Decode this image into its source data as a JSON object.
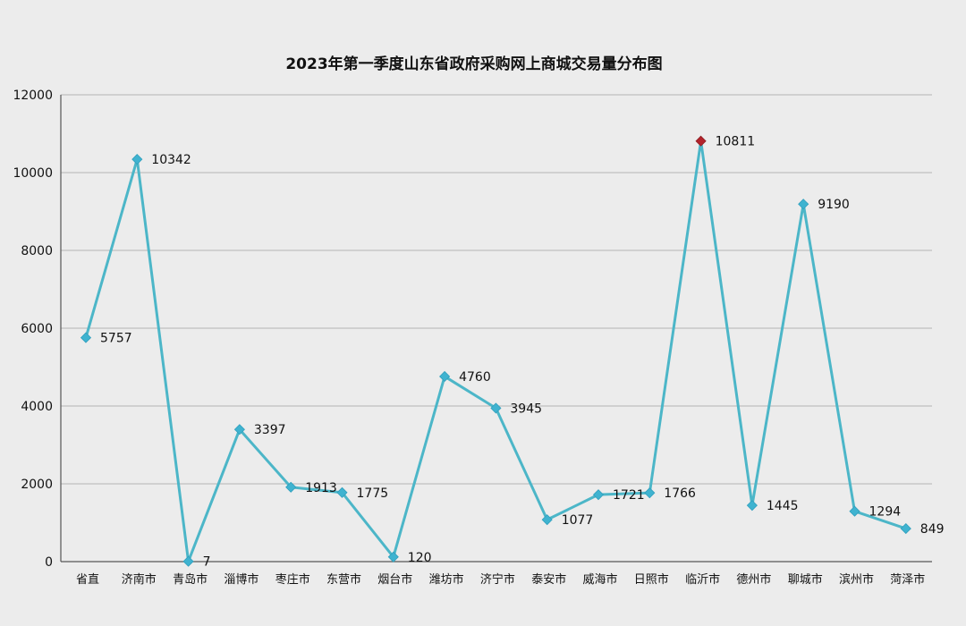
{
  "chart_data": {
    "type": "line",
    "title": "2023年第一季度山东省政府采购网上商城交易量分布图",
    "categories": [
      "省直",
      "济南市",
      "青岛市",
      "淄博市",
      "枣庄市",
      "东营市",
      "烟台市",
      "潍坊市",
      "济宁市",
      "泰安市",
      "威海市",
      "日照市",
      "临沂市",
      "德州市",
      "聊城市",
      "滨州市",
      "菏泽市"
    ],
    "series": [
      {
        "values": [
          5757,
          10342,
          7,
          3397,
          1913,
          1775,
          120,
          4760,
          3945,
          1077,
          1721,
          1766,
          10811,
          1445,
          9190,
          1294,
          849
        ]
      }
    ],
    "ylim": [
      0,
      12000
    ],
    "yticks": [
      0,
      2000,
      4000,
      6000,
      8000,
      10000,
      12000
    ],
    "grid": true,
    "xlabel": "",
    "ylabel": "",
    "highlight_index": 12,
    "colors": {
      "line": "#4cb6c8",
      "marker": "#3fb3d0",
      "highlight": "#b3232b",
      "grid": "#b4b4b4",
      "axis": "#555555"
    }
  }
}
